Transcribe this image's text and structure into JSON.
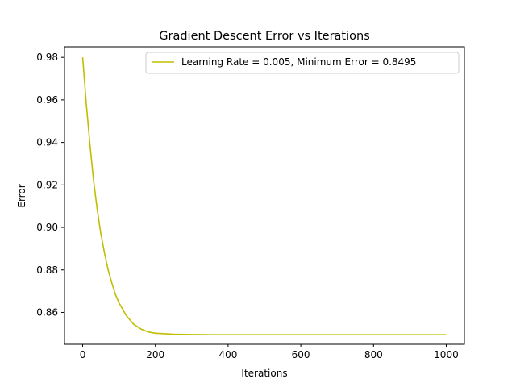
{
  "chart_data": {
    "type": "line",
    "title": "Gradient Descent Error vs Iterations",
    "xlabel": "Iterations",
    "ylabel": "Error",
    "xlim": [
      -50,
      1050
    ],
    "ylim": [
      0.845,
      0.985
    ],
    "xticks": [
      0,
      200,
      400,
      600,
      800,
      1000
    ],
    "xtick_labels": [
      "0",
      "200",
      "400",
      "600",
      "800",
      "1000"
    ],
    "yticks": [
      0.86,
      0.88,
      0.9,
      0.92,
      0.94,
      0.96,
      0.98
    ],
    "ytick_labels": [
      "0.86",
      "0.88",
      "0.90",
      "0.92",
      "0.94",
      "0.96",
      "0.98"
    ],
    "grid": false,
    "legend_position": "top-right",
    "series": [
      {
        "name": "Learning Rate = 0.005, Minimum Error = 0.8495",
        "color": "#bfbf00",
        "x": [
          0,
          10,
          20,
          30,
          40,
          50,
          60,
          70,
          80,
          90,
          100,
          120,
          140,
          160,
          180,
          200,
          250,
          300,
          350,
          400,
          500,
          600,
          700,
          800,
          900,
          1000
        ],
        "y": [
          0.98,
          0.958,
          0.939,
          0.922,
          0.9085,
          0.897,
          0.888,
          0.88,
          0.874,
          0.8685,
          0.8645,
          0.8585,
          0.8545,
          0.8522,
          0.8508,
          0.8502,
          0.8497,
          0.8496,
          0.8495,
          0.8495,
          0.8495,
          0.8495,
          0.8495,
          0.8495,
          0.8495,
          0.8495
        ]
      }
    ]
  }
}
